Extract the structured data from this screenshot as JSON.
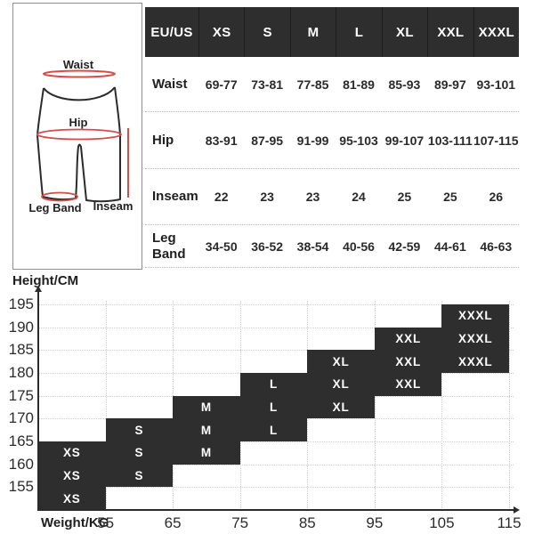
{
  "page": {
    "background": "#ffffff"
  },
  "diagram": {
    "labels": {
      "waist": "Waist",
      "hip": "Hip",
      "leg_band": "Leg Band",
      "inseam": "Inseam"
    },
    "outline_color": "#2b2b2b",
    "measure_color": "#d84b46"
  },
  "size_table": {
    "columns": [
      "EU/US",
      "XS",
      "S",
      "M",
      "L",
      "XL",
      "XXL",
      "XXXL"
    ],
    "rows": [
      {
        "label": "Waist",
        "values": [
          "69-77",
          "73-81",
          "77-85",
          "81-89",
          "85-93",
          "89-97",
          "93-101"
        ]
      },
      {
        "label": "Hip",
        "values": [
          "83-91",
          "87-95",
          "91-99",
          "95-103",
          "99-107",
          "103-111",
          "107-115"
        ]
      },
      {
        "label": "Inseam",
        "values": [
          "22",
          "23",
          "23",
          "24",
          "25",
          "25",
          "26"
        ]
      },
      {
        "label": "Leg Band",
        "values": [
          "34-50",
          "36-52",
          "38-54",
          "40-56",
          "42-59",
          "44-61",
          "46-63"
        ]
      }
    ],
    "header_bg": "#2e2e2e",
    "header_text_color": "#ffffff"
  },
  "chart_data": {
    "type": "heatmap",
    "title": "",
    "xlabel": "Weight/KG",
    "ylabel": "Height/CM",
    "x_ticks": [
      55,
      65,
      75,
      85,
      95,
      105,
      115
    ],
    "y_ticks": [
      195,
      190,
      185,
      180,
      175,
      170,
      165,
      160,
      155
    ],
    "x_range": [
      45,
      115
    ],
    "y_range": [
      150,
      195
    ],
    "grid": "dotted",
    "cell_color": "#2e2e2e",
    "cell_text_color": "#ffffff",
    "blocks": [
      {
        "label": "XS",
        "weight_range": [
          45,
          55
        ],
        "height_range": [
          150,
          165
        ]
      },
      {
        "label": "S",
        "weight_range": [
          55,
          65
        ],
        "height_range": [
          155,
          170
        ]
      },
      {
        "label": "M",
        "weight_range": [
          65,
          75
        ],
        "height_range": [
          160,
          175
        ]
      },
      {
        "label": "L",
        "weight_range": [
          75,
          85
        ],
        "height_range": [
          165,
          180
        ]
      },
      {
        "label": "XL",
        "weight_range": [
          85,
          95
        ],
        "height_range": [
          170,
          185
        ]
      },
      {
        "label": "XXL",
        "weight_range": [
          95,
          105
        ],
        "height_range": [
          175,
          190
        ]
      },
      {
        "label": "XXXL",
        "weight_range": [
          105,
          115
        ],
        "height_range": [
          180,
          195
        ]
      }
    ]
  }
}
